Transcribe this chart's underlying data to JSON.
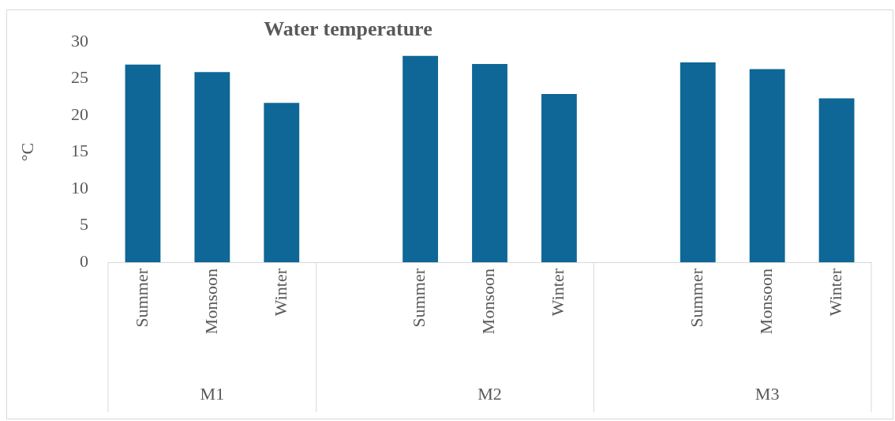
{
  "chart_data": {
    "type": "bar",
    "title": "Water temperature",
    "ylabel": "°C",
    "categories": [
      "Summer",
      "Monsoon",
      "Winter",
      null,
      "Summer",
      "Monsoon",
      "Winter",
      null,
      "Summer",
      "Monsoon",
      "Winter"
    ],
    "values": [
      26.9,
      25.9,
      21.7,
      null,
      28.1,
      27.0,
      22.9,
      null,
      27.2,
      26.3,
      22.3
    ],
    "color": "#0e6796",
    "ylim": [
      0,
      30
    ],
    "yticks": [
      0,
      5,
      10,
      15,
      20,
      25,
      30
    ],
    "grid": false,
    "legend": false,
    "annotations": [
      "M1",
      "M2",
      "M3"
    ]
  }
}
